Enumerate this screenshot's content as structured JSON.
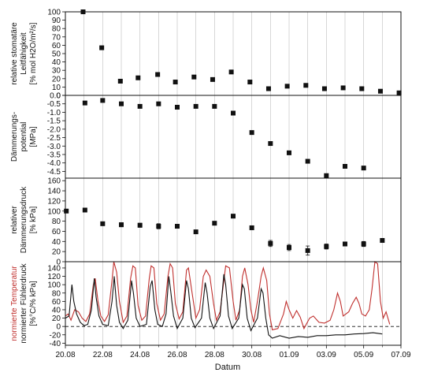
{
  "chart_data": {
    "type": "multi-panel",
    "xlabel": "Datum",
    "x_ticks": [
      "20.08",
      "22.08",
      "24.08",
      "26.08",
      "28.08",
      "30.08",
      "01.09",
      "03.09",
      "05.09",
      "07.09"
    ],
    "x_range_days": [
      0,
      18
    ],
    "panels": [
      {
        "id": "leitfaehigkeit",
        "type": "scatter",
        "ylabel_lines": [
          "relative stomatäre",
          "Leitfähigkeit",
          "[% mol H2O/m²/s]"
        ],
        "ylim": [
          0,
          100
        ],
        "yticks": [
          0,
          10,
          20,
          30,
          40,
          50,
          60,
          70,
          80,
          90,
          100
        ],
        "y_tick_labels": [
          "0",
          "10",
          "20",
          "30",
          "40",
          "50",
          "60",
          "70",
          "80",
          "90",
          "100"
        ],
        "points": [
          {
            "x": 0.95,
            "y": 100
          },
          {
            "x": 1.95,
            "y": 57
          },
          {
            "x": 2.95,
            "y": 17
          },
          {
            "x": 3.9,
            "y": 21
          },
          {
            "x": 4.95,
            "y": 25
          },
          {
            "x": 5.9,
            "y": 16
          },
          {
            "x": 6.9,
            "y": 22
          },
          {
            "x": 7.9,
            "y": 19
          },
          {
            "x": 8.9,
            "y": 28
          },
          {
            "x": 9.9,
            "y": 16
          },
          {
            "x": 10.9,
            "y": 8
          },
          {
            "x": 11.9,
            "y": 11
          },
          {
            "x": 12.9,
            "y": 12
          },
          {
            "x": 13.9,
            "y": 8
          },
          {
            "x": 14.9,
            "y": 9
          },
          {
            "x": 15.9,
            "y": 8
          },
          {
            "x": 16.9,
            "y": 5
          },
          {
            "x": 17.9,
            "y": 3
          }
        ]
      },
      {
        "id": "daemmerungspotential",
        "type": "scatter",
        "ylabel_lines": [
          "Dämmerungs-",
          "potential",
          "[MPa]"
        ],
        "ylim": [
          -4.9,
          0
        ],
        "yticks": [
          0,
          -0.5,
          -1,
          -1.5,
          -2,
          -2.5,
          -3,
          -3.5,
          -4,
          -4.5
        ],
        "y_tick_labels": [
          "0.0",
          "-0.5",
          "-1.0",
          "-1.5",
          "-2.0",
          "-2.5",
          "-3.0",
          "-3.5",
          "-4.0",
          "-4.5"
        ],
        "points": [
          {
            "x": 1.05,
            "y": -0.45
          },
          {
            "x": 2.0,
            "y": -0.3
          },
          {
            "x": 3.0,
            "y": -0.5
          },
          {
            "x": 4.0,
            "y": -0.65
          },
          {
            "x": 5.0,
            "y": -0.5
          },
          {
            "x": 6.0,
            "y": -0.7
          },
          {
            "x": 7.0,
            "y": -0.65
          },
          {
            "x": 8.0,
            "y": -0.65
          },
          {
            "x": 9.0,
            "y": -1.05
          },
          {
            "x": 10.0,
            "y": -2.2
          },
          {
            "x": 11.0,
            "y": -2.85
          },
          {
            "x": 12.0,
            "y": -3.4
          },
          {
            "x": 13.0,
            "y": -3.9
          },
          {
            "x": 14.0,
            "y": -4.75
          },
          {
            "x": 15.0,
            "y": -4.2
          },
          {
            "x": 16.0,
            "y": -4.3
          }
        ]
      },
      {
        "id": "daemmerungsdruck",
        "type": "scatter",
        "ylabel_lines": [
          "relativer",
          "Dämmerungsdruck",
          "[% kPa]"
        ],
        "ylim": [
          0,
          165
        ],
        "yticks": [
          0,
          20,
          40,
          60,
          80,
          100,
          120,
          140,
          160
        ],
        "y_tick_labels": [
          "0",
          "20",
          "40",
          "60",
          "80",
          "100",
          "120",
          "140",
          "160"
        ],
        "points": [
          {
            "x": 0.05,
            "y": 100,
            "err": 2
          },
          {
            "x": 1.05,
            "y": 102,
            "err": 3
          },
          {
            "x": 2.0,
            "y": 75,
            "err": 3
          },
          {
            "x": 3.0,
            "y": 73,
            "err": 4
          },
          {
            "x": 4.0,
            "y": 72,
            "err": 4
          },
          {
            "x": 5.0,
            "y": 70,
            "err": 5
          },
          {
            "x": 6.0,
            "y": 70,
            "err": 3
          },
          {
            "x": 7.0,
            "y": 59,
            "err": 3
          },
          {
            "x": 8.0,
            "y": 76,
            "err": 3
          },
          {
            "x": 9.0,
            "y": 90,
            "err": 3
          },
          {
            "x": 10.0,
            "y": 67,
            "err": 3
          },
          {
            "x": 11.0,
            "y": 36,
            "err": 6
          },
          {
            "x": 12.0,
            "y": 28,
            "err": 6
          },
          {
            "x": 13.0,
            "y": 22,
            "err": 9
          },
          {
            "x": 14.0,
            "y": 30,
            "err": 5
          },
          {
            "x": 15.0,
            "y": 35,
            "err": 4
          },
          {
            "x": 16.0,
            "y": 35,
            "err": 5
          },
          {
            "x": 17.0,
            "y": 42,
            "err": 4
          }
        ]
      },
      {
        "id": "temperatur-fuehlerdruck",
        "type": "line",
        "ylabel_red": "normierte Temperatur",
        "ylabel_black": "normierter Fühlerdruck",
        "ylabel_unit": "[%°C/% kPa]",
        "ylim": [
          -45,
          155
        ],
        "yticks": [
          -40,
          -20,
          0,
          20,
          40,
          60,
          80,
          100,
          120,
          140
        ],
        "y_tick_labels": [
          "-40",
          "-20",
          "0",
          "20",
          "40",
          "60",
          "80",
          "100",
          "120",
          "140"
        ],
        "zero_line_dashed": true,
        "series": [
          {
            "key": "temperatur",
            "color": "#c0302e",
            "points": [
              [
                0.0,
                25
              ],
              [
                0.15,
                30
              ],
              [
                0.3,
                15
              ],
              [
                0.5,
                40
              ],
              [
                0.7,
                35
              ],
              [
                0.9,
                20
              ],
              [
                1.1,
                12
              ],
              [
                1.3,
                30
              ],
              [
                1.5,
                100
              ],
              [
                1.6,
                115
              ],
              [
                1.75,
                60
              ],
              [
                1.9,
                25
              ],
              [
                2.1,
                12
              ],
              [
                2.3,
                28
              ],
              [
                2.5,
                110
              ],
              [
                2.6,
                155
              ],
              [
                2.75,
                130
              ],
              [
                2.9,
                60
              ],
              [
                3.1,
                10
              ],
              [
                3.3,
                25
              ],
              [
                3.5,
                115
              ],
              [
                3.62,
                145
              ],
              [
                3.75,
                140
              ],
              [
                3.9,
                50
              ],
              [
                4.1,
                15
              ],
              [
                4.3,
                25
              ],
              [
                4.5,
                115
              ],
              [
                4.6,
                145
              ],
              [
                4.75,
                140
              ],
              [
                4.9,
                55
              ],
              [
                5.1,
                15
              ],
              [
                5.3,
                30
              ],
              [
                5.5,
                120
              ],
              [
                5.62,
                150
              ],
              [
                5.75,
                140
              ],
              [
                5.9,
                55
              ],
              [
                6.1,
                18
              ],
              [
                6.3,
                35
              ],
              [
                6.5,
                135
              ],
              [
                6.6,
                140
              ],
              [
                6.8,
                80
              ],
              [
                7.0,
                20
              ],
              [
                7.2,
                40
              ],
              [
                7.4,
                120
              ],
              [
                7.55,
                135
              ],
              [
                7.75,
                120
              ],
              [
                7.95,
                55
              ],
              [
                8.1,
                15
              ],
              [
                8.3,
                35
              ],
              [
                8.5,
                110
              ],
              [
                8.6,
                145
              ],
              [
                8.8,
                140
              ],
              [
                9.0,
                60
              ],
              [
                9.15,
                15
              ],
              [
                9.35,
                40
              ],
              [
                9.5,
                120
              ],
              [
                9.62,
                140
              ],
              [
                9.8,
                100
              ],
              [
                9.95,
                40
              ],
              [
                10.1,
                10
              ],
              [
                10.3,
                60
              ],
              [
                10.5,
                120
              ],
              [
                10.62,
                140
              ],
              [
                10.8,
                110
              ],
              [
                10.95,
                30
              ],
              [
                11.1,
                -8
              ],
              [
                11.4,
                -5
              ],
              [
                11.7,
                30
              ],
              [
                11.85,
                60
              ],
              [
                12.0,
                40
              ],
              [
                12.2,
                20
              ],
              [
                12.4,
                38
              ],
              [
                12.6,
                22
              ],
              [
                12.8,
                -5
              ],
              [
                13.1,
                20
              ],
              [
                13.3,
                25
              ],
              [
                13.6,
                10
              ],
              [
                13.9,
                8
              ],
              [
                14.2,
                15
              ],
              [
                14.4,
                40
              ],
              [
                14.6,
                80
              ],
              [
                14.75,
                60
              ],
              [
                14.9,
                25
              ],
              [
                15.2,
                35
              ],
              [
                15.4,
                55
              ],
              [
                15.6,
                70
              ],
              [
                15.75,
                55
              ],
              [
                15.9,
                30
              ],
              [
                16.1,
                25
              ],
              [
                16.3,
                40
              ],
              [
                16.45,
                90
              ],
              [
                16.6,
                155
              ],
              [
                16.75,
                150
              ],
              [
                16.9,
                60
              ],
              [
                17.05,
                20
              ],
              [
                17.2,
                35
              ],
              [
                17.4,
                5
              ]
            ]
          },
          {
            "key": "fuehlerdruck",
            "color": "#111111",
            "points": [
              [
                0.0,
                20
              ],
              [
                0.2,
                25
              ],
              [
                0.35,
                100
              ],
              [
                0.45,
                60
              ],
              [
                0.6,
                30
              ],
              [
                0.8,
                10
              ],
              [
                1.0,
                2
              ],
              [
                1.2,
                5
              ],
              [
                1.4,
                40
              ],
              [
                1.55,
                115
              ],
              [
                1.65,
                70
              ],
              [
                1.8,
                25
              ],
              [
                2.0,
                5
              ],
              [
                2.3,
                2
              ],
              [
                2.5,
                60
              ],
              [
                2.62,
                120
              ],
              [
                2.75,
                50
              ],
              [
                2.9,
                10
              ],
              [
                3.1,
                -5
              ],
              [
                3.35,
                15
              ],
              [
                3.55,
                110
              ],
              [
                3.65,
                80
              ],
              [
                3.8,
                20
              ],
              [
                4.0,
                0
              ],
              [
                4.35,
                5
              ],
              [
                4.55,
                95
              ],
              [
                4.65,
                110
              ],
              [
                4.8,
                40
              ],
              [
                4.95,
                5
              ],
              [
                5.2,
                0
              ],
              [
                5.4,
                30
              ],
              [
                5.55,
                120
              ],
              [
                5.65,
                85
              ],
              [
                5.8,
                25
              ],
              [
                6.0,
                -5
              ],
              [
                6.3,
                20
              ],
              [
                6.5,
                110
              ],
              [
                6.6,
                90
              ],
              [
                6.75,
                20
              ],
              [
                6.95,
                -3
              ],
              [
                7.3,
                20
              ],
              [
                7.5,
                105
              ],
              [
                7.6,
                80
              ],
              [
                7.75,
                20
              ],
              [
                7.95,
                -5
              ],
              [
                8.3,
                25
              ],
              [
                8.5,
                125
              ],
              [
                8.6,
                100
              ],
              [
                8.75,
                25
              ],
              [
                8.95,
                -5
              ],
              [
                9.3,
                20
              ],
              [
                9.5,
                100
              ],
              [
                9.6,
                90
              ],
              [
                9.75,
                20
              ],
              [
                9.95,
                -10
              ],
              [
                10.3,
                20
              ],
              [
                10.5,
                90
              ],
              [
                10.6,
                80
              ],
              [
                10.75,
                20
              ],
              [
                10.9,
                -20
              ],
              [
                11.1,
                -28
              ],
              [
                11.5,
                -22
              ],
              [
                12.0,
                -28
              ],
              [
                12.5,
                -24
              ],
              [
                13.0,
                -26
              ],
              [
                13.5,
                -22
              ],
              [
                14.0,
                -22
              ],
              [
                14.5,
                -20
              ],
              [
                15.0,
                -20
              ],
              [
                15.5,
                -18
              ],
              [
                16.0,
                -17
              ],
              [
                16.5,
                -15
              ],
              [
                17.0,
                -18
              ]
            ]
          }
        ]
      }
    ]
  }
}
